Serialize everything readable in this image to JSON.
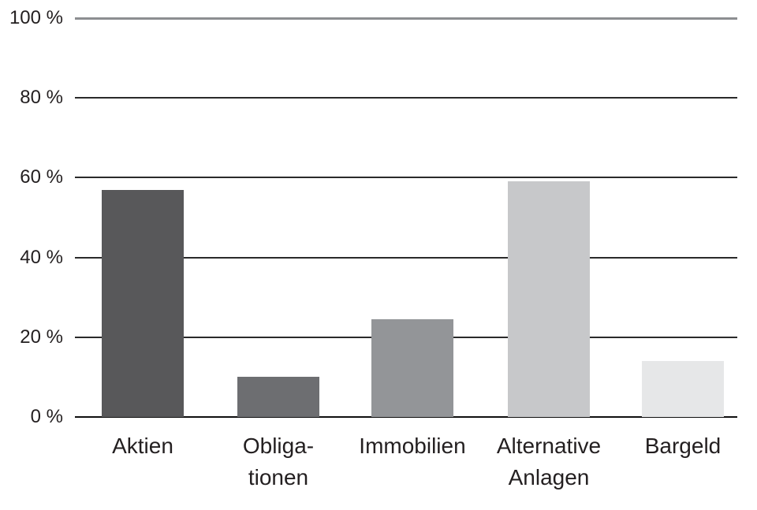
{
  "chart_data": {
    "type": "bar",
    "title": "",
    "xlabel": "",
    "ylabel": "",
    "unit": "%",
    "categories": [
      "Aktien",
      "Obligationen",
      "Immobilien",
      "Alternative Anlagen",
      "Bargeld"
    ],
    "category_display_lines": [
      [
        "Aktien"
      ],
      [
        "Obliga-",
        "tionen"
      ],
      [
        "Immobilien"
      ],
      [
        "Alternative",
        "Anlagen"
      ],
      [
        "Bargeld"
      ]
    ],
    "values": [
      57,
      10,
      24.5,
      59,
      14
    ],
    "bar_colors": [
      "#58585a",
      "#6d6e71",
      "#939598",
      "#c7c8ca",
      "#e6e7e8"
    ],
    "ylim": [
      0,
      100
    ],
    "yticks": [
      0,
      20,
      40,
      60,
      80,
      100
    ],
    "ytick_labels": [
      "0 %",
      "20 %",
      "40 %",
      "60 %",
      "80 %",
      "100 %"
    ],
    "grid": "horizontal",
    "legend": "none"
  },
  "colors": {
    "background": "#ffffff",
    "text": "#231f20",
    "gridline": "#2a2a2a",
    "gridline_top": "#8c8e91",
    "baseline": "#0f0f0f"
  }
}
